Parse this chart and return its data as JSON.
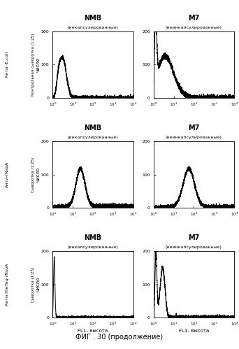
{
  "title": "ФИГ . 30 (продолжение)",
  "col_titles": [
    "NMB",
    "M7"
  ],
  "col_subtitles_left": "(инкапсулированные)",
  "col_subtitles_right": "(неинкапсулированные)",
  "row_label1": [
    "Анти -E.coli",
    "Анти-rNspA",
    "Анти HieTaq-rNspA"
  ],
  "row_label2": [
    "Контрольная сыворотка (1:25)",
    "Сыворотка (1:25)",
    "Сыворотка (1:25)"
  ],
  "xlabel": "FL1- высота",
  "ylabel": "число",
  "background_color": "#ffffff"
}
